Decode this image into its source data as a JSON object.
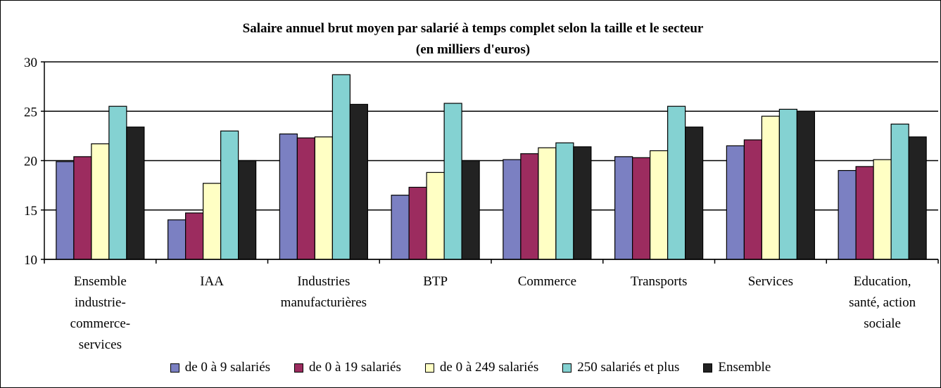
{
  "chart_data": {
    "type": "bar",
    "title": "Salaire annuel brut moyen par salarié à temps complet selon la taille et le secteur",
    "subtitle": "(en milliers d'euros)",
    "categories": [
      "Ensemble industrie-commerce-services",
      "IAA",
      "Industries manufacturières",
      "BTP",
      "Commerce",
      "Transports",
      "Services",
      "Education, santé, action sociale"
    ],
    "series": [
      {
        "name": "de 0 à 9 salariés",
        "color": "#7b80c2",
        "values": [
          19.9,
          14.0,
          22.7,
          16.5,
          20.1,
          20.4,
          21.5,
          19.0
        ]
      },
      {
        "name": "de 0 à 19 salariés",
        "color": "#9c2c5f",
        "values": [
          20.4,
          14.7,
          22.3,
          17.3,
          20.7,
          20.3,
          22.1,
          19.4
        ]
      },
      {
        "name": "de 0 à 249 salariés",
        "color": "#ffffc4",
        "values": [
          21.7,
          17.7,
          22.4,
          18.8,
          21.3,
          21.0,
          24.5,
          20.1
        ]
      },
      {
        "name": "250 salariés et plus",
        "color": "#84d2d2",
        "values": [
          25.5,
          23.0,
          28.7,
          25.8,
          21.8,
          25.5,
          25.2,
          23.7
        ]
      },
      {
        "name": "Ensemble",
        "color": "#222222",
        "values": [
          23.4,
          20.0,
          25.7,
          20.0,
          21.4,
          23.4,
          25.0,
          22.4
        ]
      }
    ],
    "ylim": [
      10,
      30
    ],
    "yticks": [
      10,
      15,
      20,
      25,
      30
    ],
    "grid": true
  }
}
